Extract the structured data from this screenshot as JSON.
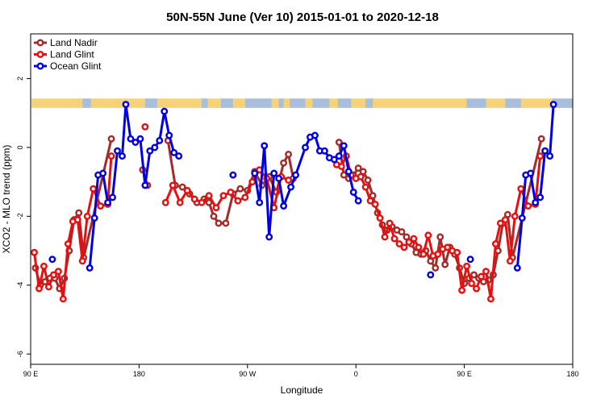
{
  "chart_data": {
    "type": "line",
    "title": "50N-55N June (Ver 10)   2015-01-01 to 2020-12-18",
    "xlabel": "Longitude",
    "ylabel": "XCO2 - MLO trend (ppm)",
    "x_ticks": [
      {
        "value": 90,
        "label": "90 E"
      },
      {
        "value": 180,
        "label": "180"
      },
      {
        "value": 270,
        "label": "90 W"
      },
      {
        "value": 360,
        "label": "0"
      },
      {
        "value": 450,
        "label": "90 E"
      },
      {
        "value": 540,
        "label": "180"
      }
    ],
    "y_ticks": [
      -6,
      -4,
      -2,
      0,
      2
    ],
    "xlim": [
      90,
      540
    ],
    "ylim": [
      -6.3,
      3.3
    ],
    "grid": false,
    "legend_position": "top-left",
    "land_band": {
      "y_bottom": 1.15,
      "y_top": 1.42,
      "land_color": "#F5D27A",
      "ocean_color": "#A9BEDC"
    },
    "series": [
      {
        "name": "Land Nadir",
        "color": "#A52A2A",
        "points": [
          [
            94,
            -3.5
          ],
          [
            98,
            -4.0
          ],
          [
            102,
            -3.9
          ],
          [
            106,
            -3.8
          ],
          [
            110,
            -3.8
          ],
          [
            114,
            -4.1
          ],
          [
            118,
            -3.8
          ],
          [
            122,
            -3.0
          ],
          [
            126,
            -2.1
          ],
          [
            130,
            -1.9
          ],
          [
            134,
            -3.2
          ],
          [
            157,
            0.25
          ],
          null,
          [
            183,
            -0.65
          ],
          [
            187,
            -1.1
          ],
          null,
          [
            204,
            0.2
          ],
          [
            210,
            -1.1
          ],
          [
            216,
            -1.15
          ],
          [
            222,
            -1.35
          ],
          [
            228,
            -1.6
          ],
          [
            234,
            -1.5
          ],
          [
            238,
            -1.6
          ],
          [
            242,
            -2.0
          ],
          [
            246,
            -2.2
          ],
          [
            252,
            -2.2
          ],
          [
            258,
            -1.35
          ],
          [
            264,
            -1.2
          ],
          [
            270,
            -1.25
          ],
          [
            276,
            -0.7
          ],
          [
            282,
            -1.1
          ],
          [
            288,
            -0.85
          ],
          [
            294,
            -1.3
          ],
          [
            300,
            -0.45
          ],
          [
            304,
            -0.2
          ],
          [
            308,
            -0.9
          ],
          null,
          [
            346,
            0.15
          ],
          [
            350,
            -0.8
          ],
          [
            354,
            -0.9
          ],
          [
            358,
            -0.8
          ],
          [
            362,
            -0.6
          ],
          [
            366,
            -0.7
          ],
          [
            370,
            -0.95
          ],
          [
            374,
            -1.4
          ],
          [
            378,
            -1.9
          ],
          [
            382,
            -2.25
          ],
          [
            386,
            -2.4
          ],
          [
            390,
            -2.3
          ],
          [
            394,
            -2.4
          ],
          [
            398,
            -2.45
          ],
          [
            402,
            -2.6
          ],
          [
            406,
            -2.8
          ],
          [
            410,
            -3.05
          ],
          [
            414,
            -3.1
          ],
          [
            418,
            -3.0
          ],
          [
            422,
            -3.3
          ],
          [
            426,
            -3.5
          ],
          [
            430,
            -2.6
          ],
          [
            434,
            -3.4
          ],
          [
            438,
            -2.9
          ],
          [
            442,
            -3.1
          ],
          [
            446,
            -3.5
          ],
          [
            450,
            -3.95
          ],
          [
            454,
            -3.8
          ],
          [
            458,
            -3.7
          ],
          [
            462,
            -3.8
          ],
          [
            466,
            -3.9
          ],
          [
            470,
            -3.85
          ],
          [
            474,
            -3.7
          ],
          [
            478,
            -3.0
          ],
          [
            482,
            -2.2
          ],
          [
            486,
            -1.95
          ],
          [
            490,
            -3.2
          ],
          [
            514,
            0.25
          ]
        ]
      },
      {
        "name": "Land Glint",
        "color": "#E61010",
        "points": [
          [
            93,
            -3.05
          ],
          [
            97,
            -4.1
          ],
          [
            101,
            -3.45
          ],
          [
            105,
            -4.05
          ],
          [
            109,
            -3.7
          ],
          [
            113,
            -3.6
          ],
          [
            117,
            -4.4
          ],
          [
            121,
            -2.8
          ],
          [
            125,
            -2.15
          ],
          [
            129,
            -2.1
          ],
          [
            133,
            -3.3
          ],
          [
            137,
            -2.0
          ],
          [
            142,
            -1.2
          ],
          [
            148,
            -1.7
          ],
          [
            154,
            -1.65
          ],
          [
            157,
            -0.25
          ],
          null,
          [
            185,
            0.6
          ],
          null,
          [
            202,
            -1.6
          ],
          [
            208,
            -1.1
          ],
          [
            214,
            -1.6
          ],
          [
            220,
            -1.25
          ],
          [
            226,
            -1.5
          ],
          [
            232,
            -1.6
          ],
          [
            238,
            -1.4
          ],
          [
            244,
            -1.75
          ],
          [
            250,
            -1.4
          ],
          [
            256,
            -1.3
          ],
          [
            262,
            -1.55
          ],
          [
            268,
            -1.45
          ],
          [
            274,
            -1.0
          ],
          [
            280,
            -0.65
          ],
          [
            286,
            -0.9
          ],
          [
            292,
            -1.75
          ],
          [
            298,
            -0.85
          ],
          [
            304,
            -0.95
          ],
          null,
          [
            344,
            -0.5
          ],
          [
            348,
            -0.55
          ],
          [
            352,
            -0.25
          ],
          [
            356,
            -0.8
          ],
          [
            360,
            -0.9
          ],
          [
            364,
            -0.85
          ],
          [
            368,
            -1.15
          ],
          [
            372,
            -1.55
          ],
          [
            376,
            -1.65
          ],
          [
            380,
            -2.05
          ],
          [
            384,
            -2.6
          ],
          [
            388,
            -2.2
          ],
          [
            392,
            -2.65
          ],
          [
            396,
            -2.8
          ],
          [
            400,
            -2.9
          ],
          [
            404,
            -2.75
          ],
          [
            408,
            -2.65
          ],
          [
            412,
            -2.9
          ],
          [
            416,
            -3.1
          ],
          [
            420,
            -2.55
          ],
          [
            424,
            -3.15
          ],
          [
            428,
            -3.1
          ],
          [
            432,
            -2.95
          ],
          [
            436,
            -2.9
          ],
          [
            440,
            -3.0
          ],
          [
            444,
            -3.05
          ],
          [
            448,
            -4.15
          ],
          [
            452,
            -3.45
          ],
          [
            456,
            -3.95
          ],
          [
            460,
            -4.1
          ],
          [
            464,
            -3.75
          ],
          [
            468,
            -3.6
          ],
          [
            472,
            -4.4
          ],
          [
            476,
            -2.8
          ],
          [
            480,
            -2.2
          ],
          [
            484,
            -2.1
          ],
          [
            488,
            -3.3
          ],
          [
            492,
            -2.0
          ],
          [
            497,
            -1.2
          ],
          [
            503,
            -1.7
          ],
          [
            509,
            -1.65
          ],
          [
            513,
            -0.25
          ]
        ]
      },
      {
        "name": "Ocean Glint",
        "color": "#0000E6",
        "points": [
          [
            108,
            -3.25
          ],
          null,
          [
            139,
            -3.5
          ],
          [
            143,
            -2.05
          ],
          [
            146,
            -0.8
          ],
          [
            150,
            -0.75
          ],
          [
            154,
            -1.6
          ],
          [
            158,
            -1.45
          ],
          [
            162,
            -0.1
          ],
          [
            166,
            -0.25
          ],
          [
            169,
            1.25
          ],
          [
            173,
            0.25
          ],
          [
            177,
            0.15
          ],
          [
            181,
            0.25
          ],
          [
            185,
            -1.1
          ],
          [
            189,
            -0.1
          ],
          [
            193,
            0.0
          ],
          [
            197,
            0.2
          ],
          [
            201,
            1.05
          ],
          [
            205,
            0.35
          ],
          [
            209,
            -0.15
          ],
          [
            213,
            -0.25
          ],
          null,
          [
            258,
            -0.8
          ],
          null,
          [
            276,
            -0.75
          ],
          [
            280,
            -1.6
          ],
          [
            284,
            0.05
          ],
          [
            288,
            -2.6
          ],
          [
            292,
            -0.75
          ],
          [
            296,
            -0.9
          ],
          [
            300,
            -1.7
          ],
          [
            306,
            -1.15
          ],
          [
            310,
            -0.8
          ],
          [
            318,
            0.0
          ],
          [
            322,
            0.3
          ],
          [
            326,
            0.35
          ],
          [
            330,
            -0.1
          ],
          [
            334,
            -0.1
          ],
          [
            338,
            -0.3
          ],
          [
            342,
            -0.35
          ],
          [
            346,
            -0.25
          ],
          [
            350,
            0.05
          ],
          [
            354,
            -0.7
          ],
          [
            358,
            -1.3
          ],
          [
            362,
            -1.55
          ],
          null,
          [
            422,
            -3.7
          ],
          null,
          [
            455,
            -3.25
          ],
          null,
          [
            494,
            -3.5
          ],
          [
            498,
            -2.05
          ],
          [
            501,
            -0.8
          ],
          [
            505,
            -0.75
          ],
          [
            509,
            -1.6
          ],
          [
            513,
            -1.45
          ],
          [
            517,
            -0.1
          ],
          [
            521,
            -0.25
          ],
          [
            524,
            1.25
          ]
        ]
      }
    ]
  }
}
